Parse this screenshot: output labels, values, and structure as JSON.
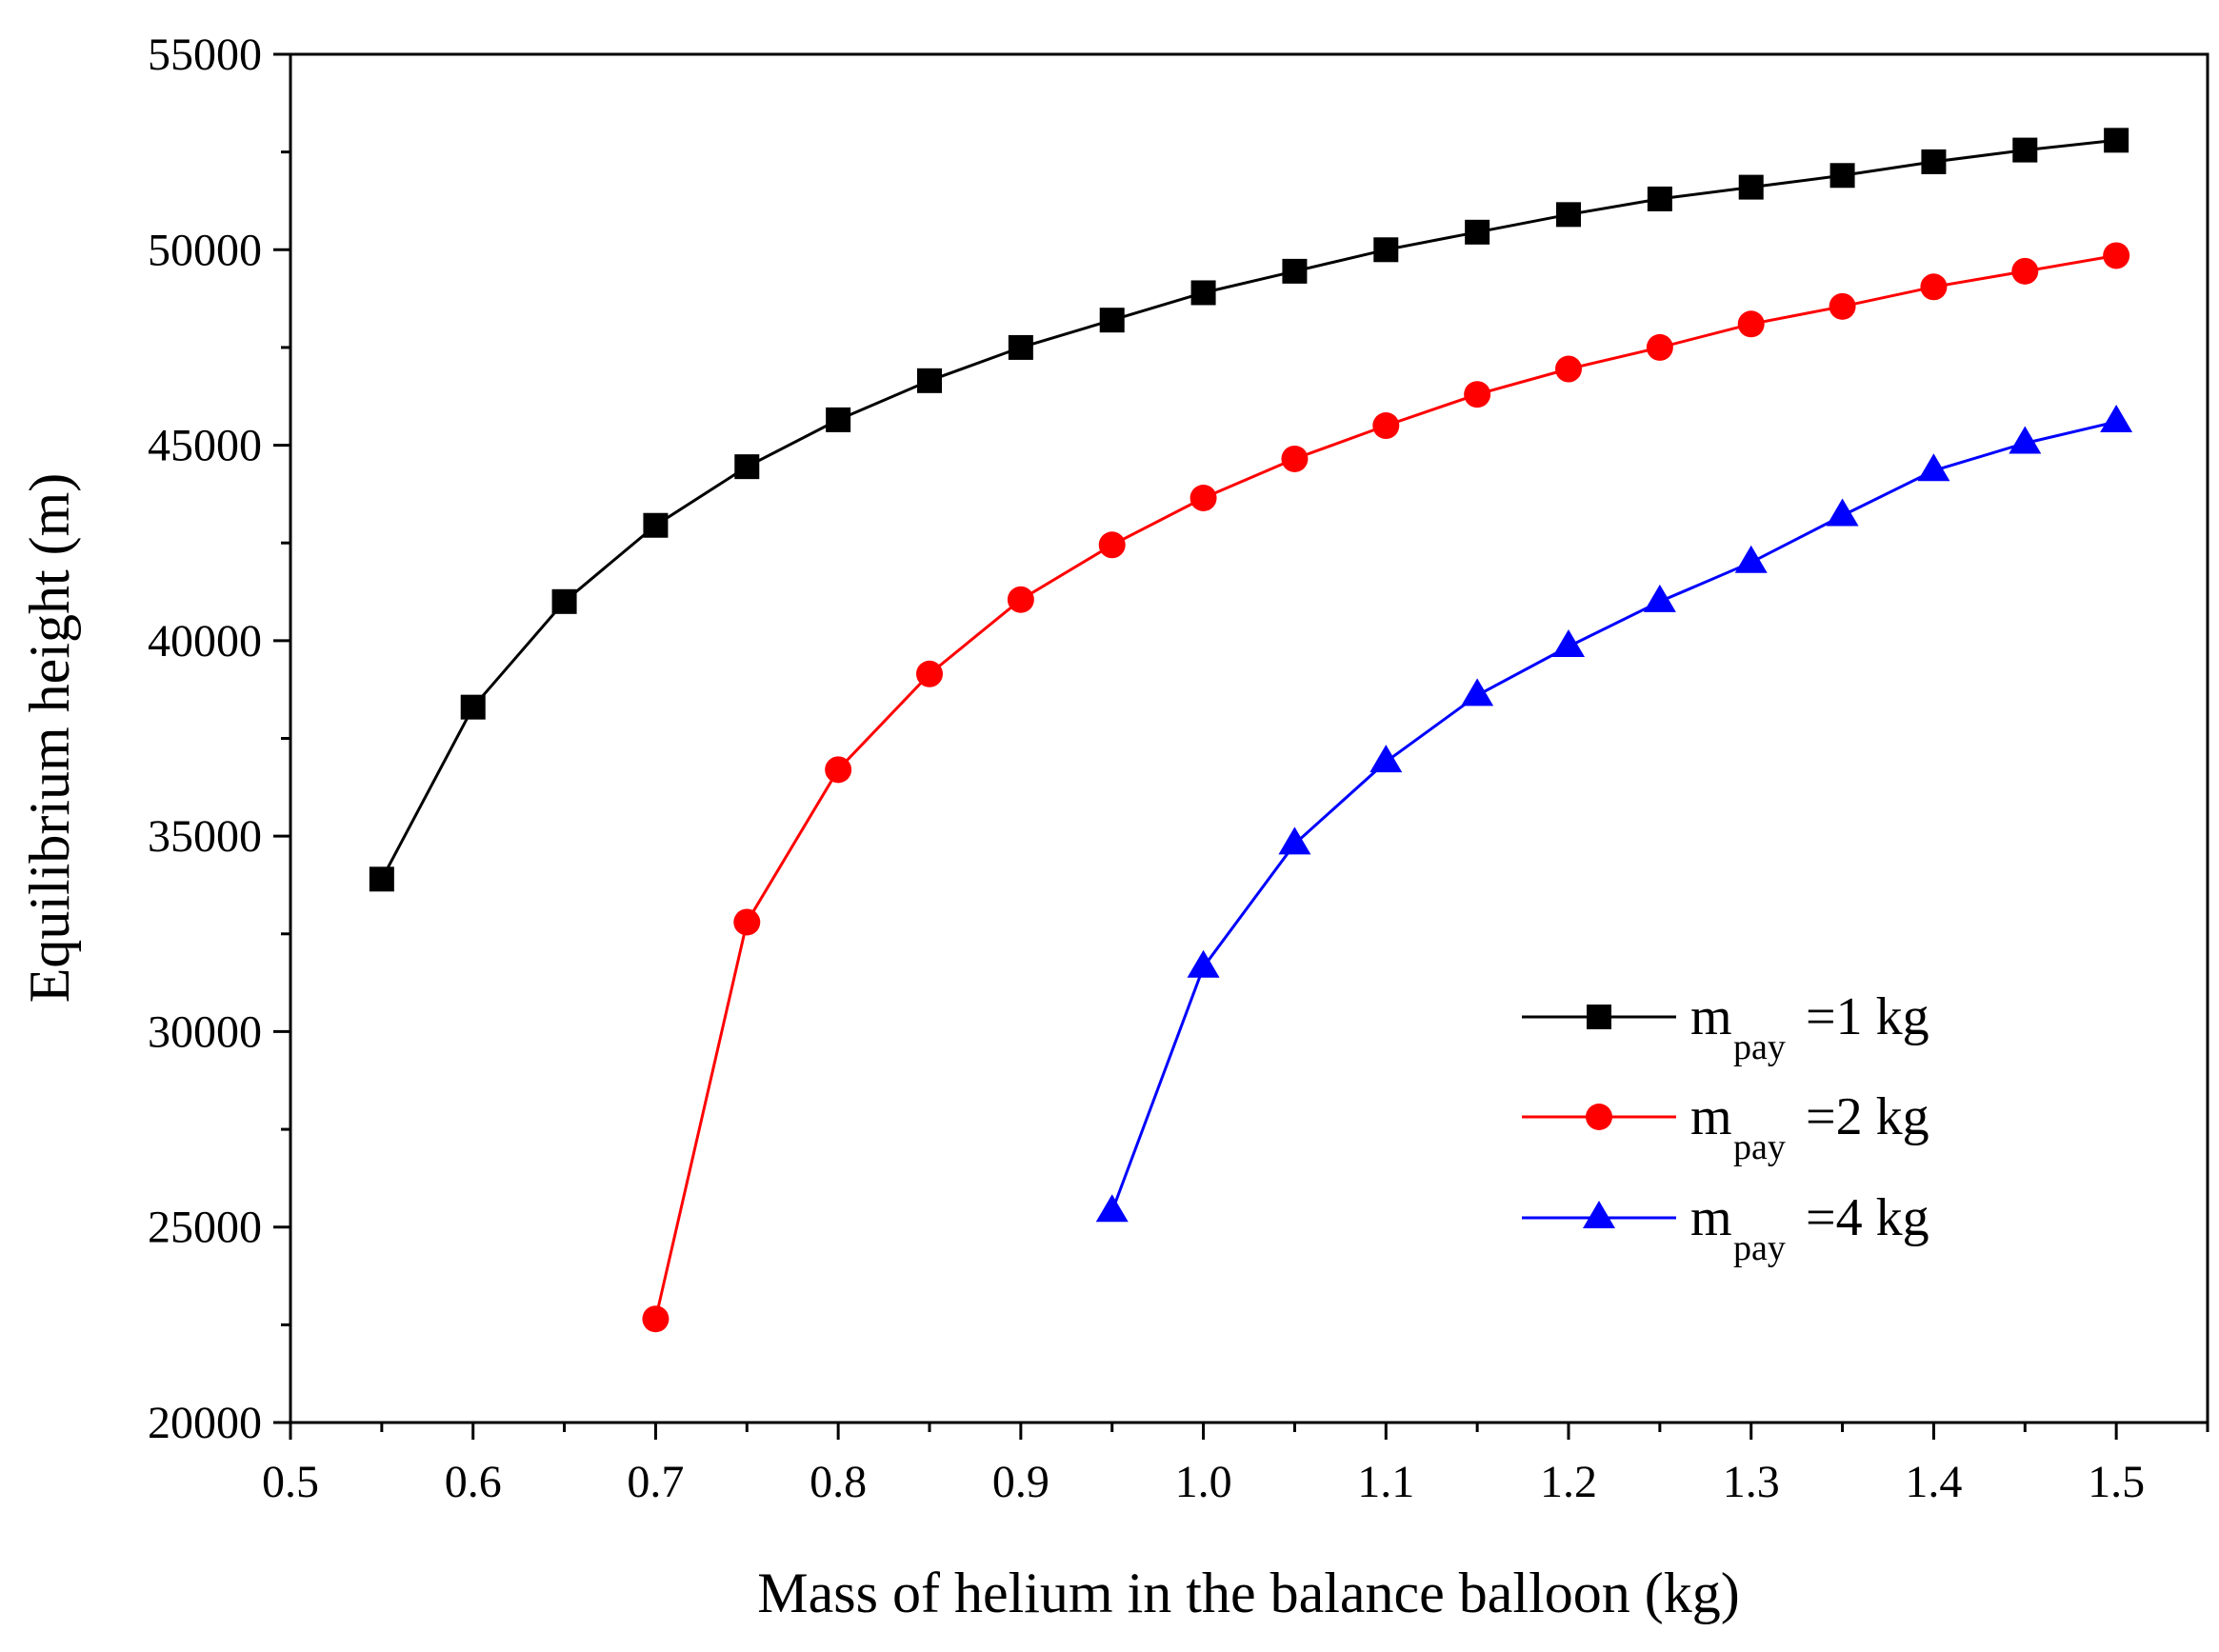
{
  "chart_data": {
    "type": "line",
    "title": "",
    "xlabel": "Mass of helium in the balance balloon (kg)",
    "ylabel": "Equilibrium height (m)",
    "xlim": [
      0.5,
      1.55
    ],
    "ylim": [
      20000,
      55000
    ],
    "x_ticks": [
      0.5,
      0.6,
      0.7,
      0.8,
      0.9,
      1.0,
      1.1,
      1.2,
      1.3,
      1.4,
      1.5
    ],
    "x_tick_labels": [
      "0.5",
      "0.6",
      "0.7",
      "0.8",
      "0.9",
      "1.0",
      "1.1",
      "1.2",
      "1.3",
      "1.4",
      "1.5"
    ],
    "y_ticks": [
      20000,
      25000,
      30000,
      35000,
      40000,
      45000,
      50000,
      55000
    ],
    "y_tick_labels": [
      "20000",
      "25000",
      "30000",
      "35000",
      "40000",
      "45000",
      "50000",
      "55000"
    ],
    "grid": false,
    "legend_position": "bottom-right",
    "series": [
      {
        "name": "m_pay=1 kg",
        "legend_main": "m",
        "legend_sub": "pay",
        "legend_rest": "=1 kg",
        "color": "#000000",
        "marker": "square",
        "x": [
          0.55,
          0.6,
          0.65,
          0.7,
          0.75,
          0.8,
          0.85,
          0.9,
          0.95,
          1.0,
          1.05,
          1.1,
          1.15,
          1.2,
          1.25,
          1.3,
          1.35,
          1.4,
          1.45,
          1.5
        ],
        "y": [
          33900,
          38300,
          41000,
          42950,
          44450,
          45650,
          46650,
          47500,
          48200,
          48900,
          49450,
          50000,
          50450,
          50900,
          51300,
          51600,
          51900,
          52250,
          52550,
          52800
        ]
      },
      {
        "name": "m_pay=2 kg",
        "legend_main": "m",
        "legend_sub": "pay",
        "legend_rest": "=2 kg",
        "color": "#ff0000",
        "marker": "circle",
        "x": [
          0.7,
          0.75,
          0.8,
          0.85,
          0.9,
          0.95,
          1.0,
          1.05,
          1.1,
          1.15,
          1.2,
          1.25,
          1.3,
          1.35,
          1.4,
          1.45,
          1.5
        ],
        "y": [
          22650,
          32800,
          36700,
          39150,
          41050,
          42450,
          43650,
          44650,
          45500,
          46300,
          46950,
          47500,
          48100,
          48550,
          49050,
          49450,
          49850
        ]
      },
      {
        "name": "m_pay=4 kg",
        "legend_main": "m",
        "legend_sub": "pay",
        "legend_rest": "=4 kg",
        "color": "#0000ff",
        "marker": "triangle",
        "x": [
          0.95,
          1.0,
          1.05,
          1.1,
          1.15,
          1.2,
          1.25,
          1.3,
          1.35,
          1.4,
          1.45,
          1.5
        ],
        "y": [
          25400,
          31650,
          34800,
          36900,
          38600,
          39850,
          41000,
          42000,
          43200,
          44350,
          45050,
          45600
        ]
      }
    ]
  }
}
